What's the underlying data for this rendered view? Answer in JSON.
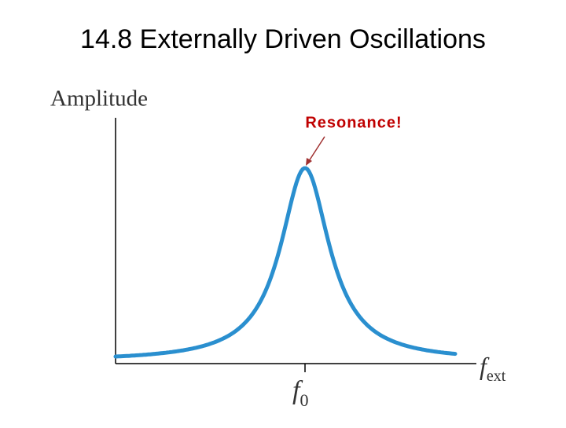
{
  "title": "14.8 Externally Driven Oscillations",
  "diagram": {
    "y_axis_label": "Amplitude",
    "annotation": "Resonance!",
    "x_axis_label": {
      "symbol": "f",
      "subscript": "ext"
    },
    "peak_label": {
      "symbol": "f",
      "subscript": "0"
    }
  }
}
